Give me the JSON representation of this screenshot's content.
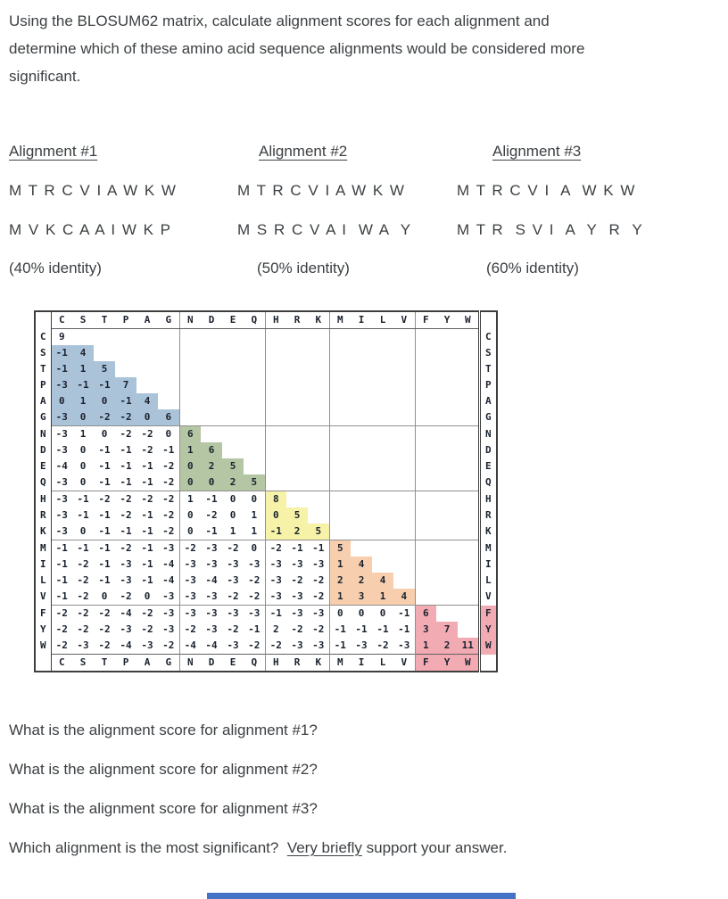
{
  "intro": {
    "lines": [
      "Using the BLOSUM62 matrix, calculate alignment scores for each alignment and",
      "determine which of these amino acid sequence alignments would be considered more",
      "significant."
    ]
  },
  "alignments": [
    {
      "title": "Alignment #1",
      "seq1": "M T R C V I A W K W",
      "seq2": "M V K C A A I W K P",
      "identity": "(40% identity)"
    },
    {
      "title": "Alignment #2",
      "seq1": "M T R C V I A W K W",
      "seq2": "M S R C V A I  W A  Y",
      "identity": "(50% identity)"
    },
    {
      "title": "Alignment #3",
      "seq1": "M T R C V I  A  W K W",
      "seq2": "M T R  S V I  A  Y  R  Y",
      "identity": "(60% identity)"
    }
  ],
  "matrix": {
    "residues": [
      "C",
      "S",
      "T",
      "P",
      "A",
      "G",
      "N",
      "D",
      "E",
      "Q",
      "H",
      "R",
      "K",
      "M",
      "I",
      "L",
      "V",
      "F",
      "Y",
      "W"
    ],
    "colors": {
      "stpag": "#abc3d9",
      "ndeq": "#b5c6a4",
      "hrk": "#f6f2a8",
      "milv": "#f8cfae",
      "fyw": "#f2abb2"
    },
    "rows": [
      [
        9
      ],
      [
        -1,
        4
      ],
      [
        -1,
        1,
        5
      ],
      [
        -3,
        -1,
        -1,
        7
      ],
      [
        0,
        1,
        0,
        -1,
        4
      ],
      [
        -3,
        0,
        -2,
        -2,
        0,
        6
      ],
      [
        -3,
        1,
        0,
        -2,
        -2,
        0,
        6
      ],
      [
        -3,
        0,
        -1,
        -1,
        -2,
        -1,
        1,
        6
      ],
      [
        -4,
        0,
        -1,
        -1,
        -1,
        -2,
        0,
        2,
        5
      ],
      [
        -3,
        0,
        -1,
        -1,
        -1,
        -2,
        0,
        0,
        2,
        5
      ],
      [
        -3,
        -1,
        -2,
        -2,
        -2,
        -2,
        1,
        -1,
        0,
        0,
        8
      ],
      [
        -3,
        -1,
        -1,
        -2,
        -1,
        -2,
        0,
        -2,
        0,
        1,
        0,
        5
      ],
      [
        -3,
        0,
        -1,
        -1,
        -1,
        -2,
        0,
        -1,
        1,
        1,
        -1,
        2,
        5
      ],
      [
        -1,
        -1,
        -1,
        -2,
        -1,
        -3,
        -2,
        -3,
        -2,
        0,
        -2,
        -1,
        -1,
        5
      ],
      [
        -1,
        -2,
        -1,
        -3,
        -1,
        -4,
        -3,
        -3,
        -3,
        -3,
        -3,
        -3,
        -3,
        1,
        4
      ],
      [
        -1,
        -2,
        -1,
        -3,
        -1,
        -4,
        -3,
        -4,
        -3,
        -2,
        -3,
        -2,
        -2,
        2,
        2,
        4
      ],
      [
        -1,
        -2,
        0,
        -2,
        0,
        -3,
        -3,
        -3,
        -2,
        -2,
        -3,
        -3,
        -2,
        1,
        3,
        1,
        4
      ],
      [
        -2,
        -2,
        -2,
        -4,
        -2,
        -3,
        -3,
        -3,
        -3,
        -3,
        -1,
        -3,
        -3,
        0,
        0,
        0,
        -1,
        6
      ],
      [
        -2,
        -2,
        -2,
        -3,
        -2,
        -3,
        -2,
        -3,
        -2,
        -1,
        2,
        -2,
        -2,
        -1,
        -1,
        -1,
        -1,
        3,
        7
      ],
      [
        -2,
        -3,
        -2,
        -4,
        -3,
        -2,
        -4,
        -4,
        -3,
        -2,
        -2,
        -3,
        -3,
        -1,
        -3,
        -2,
        -3,
        1,
        2,
        11
      ]
    ]
  },
  "questions": {
    "q1": "What is the alignment score for alignment #1?",
    "q2": "What is the alignment score for alignment #2?",
    "q3": "What is the alignment score for alignment #3?",
    "q4_prefix": "Which alignment is the most significant?  ",
    "q4_underlined": "Very briefly",
    "q4_suffix": " support your answer."
  },
  "footer_bar": {
    "color": "#4472c4"
  }
}
